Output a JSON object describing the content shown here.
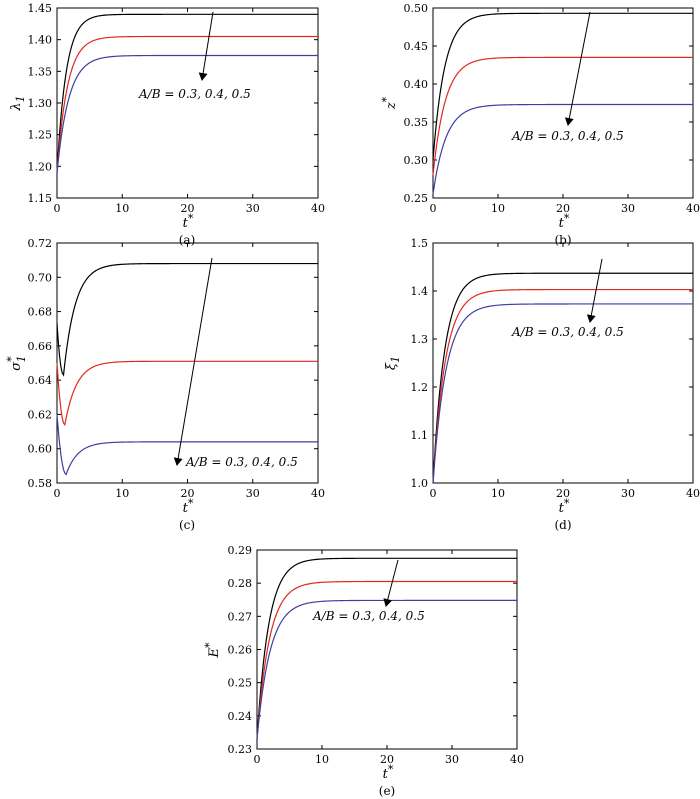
{
  "chart_data": [
    {
      "id": "a",
      "type": "line",
      "caption": "(a)",
      "xlabel": "t",
      "xlabel_sup": "*",
      "ylabel": "λ",
      "ylabel_sub": "1",
      "ylabel_sup": "",
      "xlim": [
        0,
        40
      ],
      "ylim": [
        1.15,
        1.45
      ],
      "xticks": [
        0,
        10,
        20,
        30,
        40
      ],
      "yticks": [
        1.15,
        1.2,
        1.25,
        1.3,
        1.35,
        1.4,
        1.45
      ],
      "ytick_decimals": 2,
      "annotation": "A/B = 0.3, 0.4, 0.5",
      "series": [
        {
          "color": "#000000",
          "y0": 1.19,
          "ymin": 1.19,
          "tmin": 0,
          "yend": 1.44,
          "tau": 1.4
        },
        {
          "color": "#e0291e",
          "y0": 1.19,
          "ymin": 1.19,
          "tmin": 0,
          "yend": 1.405,
          "tau": 1.6
        },
        {
          "color": "#3c3fa4",
          "y0": 1.19,
          "ymin": 1.19,
          "tmin": 0,
          "yend": 1.375,
          "tau": 1.8
        }
      ]
    },
    {
      "id": "b",
      "type": "line",
      "caption": "(b)",
      "xlabel": "t",
      "xlabel_sup": "*",
      "ylabel": "z",
      "ylabel_sub": "",
      "ylabel_sup": "*",
      "xlim": [
        0,
        40
      ],
      "ylim": [
        0.25,
        0.5
      ],
      "xticks": [
        0,
        10,
        20,
        30,
        40
      ],
      "yticks": [
        0.25,
        0.3,
        0.35,
        0.4,
        0.45,
        0.5
      ],
      "ytick_decimals": 2,
      "annotation": "A/B = 0.3, 0.4, 0.5",
      "series": [
        {
          "color": "#000000",
          "y0": 0.3,
          "ymin": 0.3,
          "tmin": 0,
          "yend": 0.493,
          "tau": 1.8
        },
        {
          "color": "#e0291e",
          "y0": 0.28,
          "ymin": 0.28,
          "tmin": 0,
          "yend": 0.435,
          "tau": 1.9
        },
        {
          "color": "#3c3fa4",
          "y0": 0.255,
          "ymin": 0.255,
          "tmin": 0,
          "yend": 0.373,
          "tau": 2.0
        }
      ]
    },
    {
      "id": "c",
      "type": "line",
      "caption": "(c)",
      "xlabel": "t",
      "xlabel_sup": "*",
      "ylabel": "σ",
      "ylabel_sub": "1",
      "ylabel_sup": "*",
      "xlim": [
        0,
        40
      ],
      "ylim": [
        0.58,
        0.72
      ],
      "xticks": [
        0,
        10,
        20,
        30,
        40
      ],
      "yticks": [
        0.58,
        0.6,
        0.62,
        0.64,
        0.66,
        0.68,
        0.7,
        0.72
      ],
      "ytick_decimals": 2,
      "annotation": "A/B = 0.3, 0.4, 0.5",
      "series": [
        {
          "color": "#000000",
          "y0": 0.673,
          "ymin": 0.643,
          "tmin": 1.0,
          "yend": 0.708,
          "tau": 1.8
        },
        {
          "color": "#e0291e",
          "y0": 0.65,
          "ymin": 0.614,
          "tmin": 1.2,
          "yend": 0.651,
          "tau": 1.8
        },
        {
          "color": "#3c3fa4",
          "y0": 0.62,
          "ymin": 0.585,
          "tmin": 1.4,
          "yend": 0.604,
          "tau": 1.8
        }
      ]
    },
    {
      "id": "d",
      "type": "line",
      "caption": "(d)",
      "xlabel": "t",
      "xlabel_sup": "*",
      "ylabel": "ξ",
      "ylabel_sub": "1",
      "ylabel_sup": "",
      "xlim": [
        0,
        40
      ],
      "ylim": [
        1.0,
        1.5
      ],
      "xticks": [
        0,
        10,
        20,
        30,
        40
      ],
      "yticks": [
        1.0,
        1.1,
        1.2,
        1.3,
        1.4,
        1.5
      ],
      "ytick_decimals": 1,
      "annotation": "A/B = 0.3, 0.4, 0.5",
      "series": [
        {
          "color": "#000000",
          "y0": 1.0,
          "ymin": 1.0,
          "tmin": 0,
          "yend": 1.437,
          "tau": 1.8
        },
        {
          "color": "#e0291e",
          "y0": 1.0,
          "ymin": 1.0,
          "tmin": 0,
          "yend": 1.403,
          "tau": 1.9
        },
        {
          "color": "#3c3fa4",
          "y0": 1.0,
          "ymin": 1.0,
          "tmin": 0,
          "yend": 1.373,
          "tau": 2.0
        }
      ]
    },
    {
      "id": "e",
      "type": "line",
      "caption": "(e)",
      "xlabel": "t",
      "xlabel_sup": "*",
      "ylabel": "E",
      "ylabel_sub": "",
      "ylabel_sup": "*",
      "xlim": [
        0,
        40
      ],
      "ylim": [
        0.23,
        0.29
      ],
      "xticks": [
        0,
        10,
        20,
        30,
        40
      ],
      "yticks": [
        0.23,
        0.24,
        0.25,
        0.26,
        0.27,
        0.28,
        0.29
      ],
      "ytick_decimals": 2,
      "annotation": "A/B = 0.3, 0.4, 0.5",
      "series": [
        {
          "color": "#000000",
          "y0": 0.233,
          "ymin": 0.233,
          "tmin": 0,
          "yend": 0.2875,
          "tau": 1.8
        },
        {
          "color": "#e0291e",
          "y0": 0.233,
          "ymin": 0.233,
          "tmin": 0,
          "yend": 0.2805,
          "tau": 1.9
        },
        {
          "color": "#3c3fa4",
          "y0": 0.233,
          "ymin": 0.233,
          "tmin": 0,
          "yend": 0.2748,
          "tau": 2.0
        }
      ]
    }
  ]
}
